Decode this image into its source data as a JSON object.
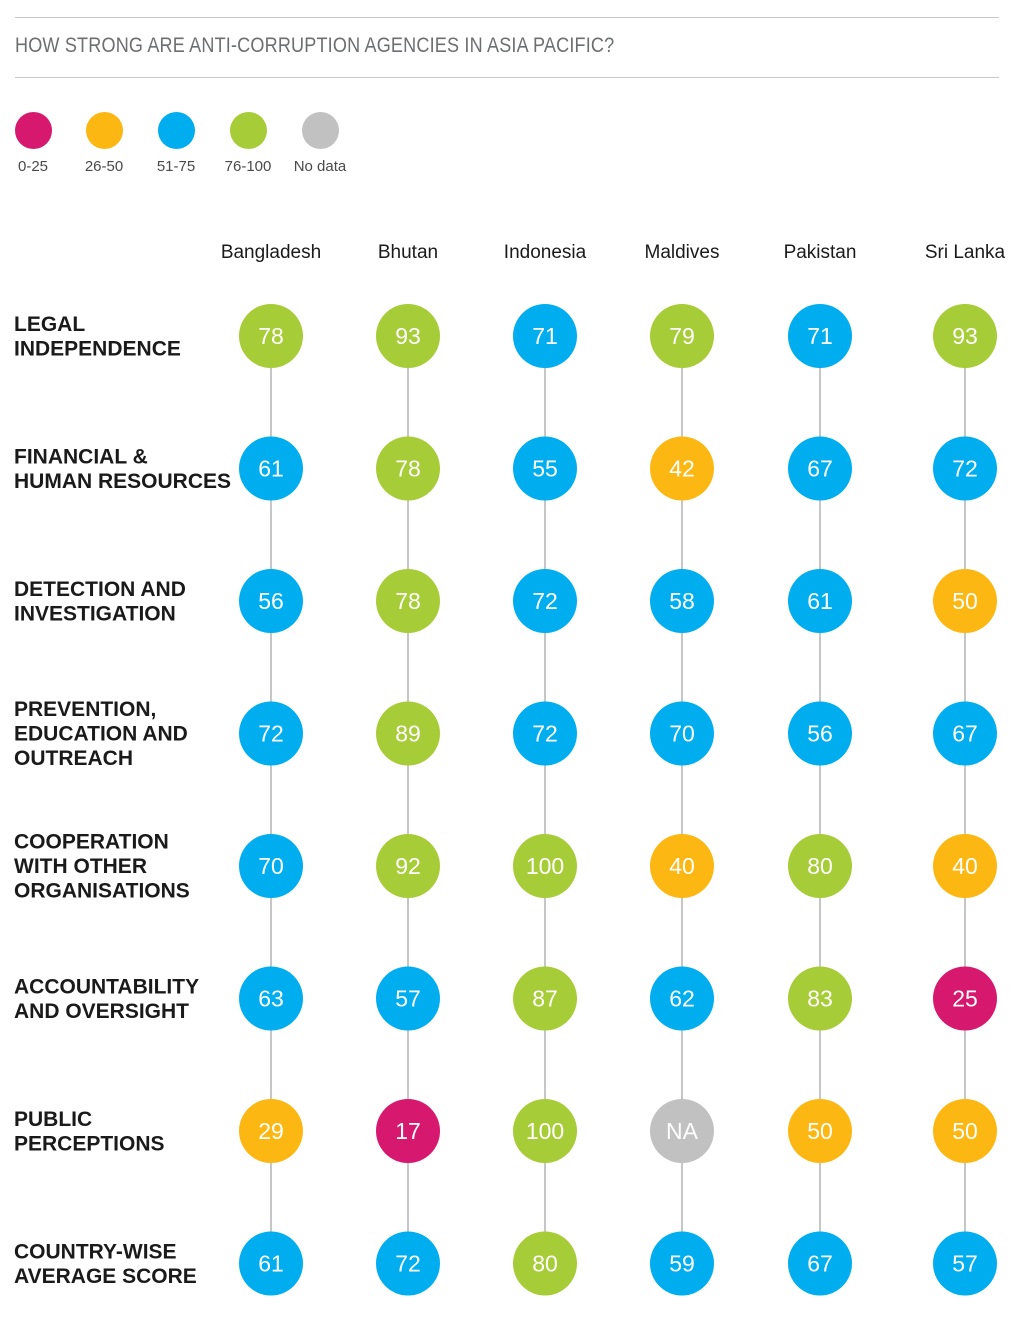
{
  "title": "HOW STRONG ARE ANTI-CORRUPTION AGENCIES IN ASIA PACIFIC?",
  "legend": [
    {
      "label": "0-25",
      "color": "#d7186f"
    },
    {
      "label": "26-50",
      "color": "#fdb713"
    },
    {
      "label": "51-75",
      "color": "#00aeef"
    },
    {
      "label": "76-100",
      "color": "#a6cd37"
    },
    {
      "label": "No data",
      "color": "#c1c1c1"
    }
  ],
  "chart_data": {
    "type": "table",
    "columns": [
      "Bangladesh",
      "Bhutan",
      "Indonesia",
      "Maldives",
      "Pakistan",
      "Sri Lanka"
    ],
    "rows": [
      {
        "label": [
          "LEGAL",
          "INDEPENDENCE"
        ],
        "values": [
          "78",
          "93",
          "71",
          "79",
          "71",
          "93"
        ]
      },
      {
        "label": [
          "FINANCIAL &",
          "HUMAN RESOURCES"
        ],
        "values": [
          "61",
          "78",
          "55",
          "42",
          "67",
          "72"
        ]
      },
      {
        "label": [
          "DETECTION AND",
          "INVESTIGATION"
        ],
        "values": [
          "56",
          "78",
          "72",
          "58",
          "61",
          "50"
        ]
      },
      {
        "label": [
          "PREVENTION,",
          "EDUCATION AND",
          "OUTREACH"
        ],
        "values": [
          "72",
          "89",
          "72",
          "70",
          "56",
          "67"
        ]
      },
      {
        "label": [
          "COOPERATION",
          "WITH OTHER",
          "ORGANISATIONS"
        ],
        "values": [
          "70",
          "92",
          "100",
          "40",
          "80",
          "40"
        ]
      },
      {
        "label": [
          "ACCOUNTABILITY",
          "AND OVERSIGHT"
        ],
        "values": [
          "63",
          "57",
          "87",
          "62",
          "83",
          "25"
        ]
      },
      {
        "label": [
          "PUBLIC",
          "PERCEPTIONS"
        ],
        "values": [
          "29",
          "17",
          "100",
          "NA",
          "50",
          "50"
        ]
      },
      {
        "label": [
          "COUNTRY-WISE",
          "AVERAGE SCORE"
        ],
        "values": [
          "61",
          "72",
          "80",
          "59",
          "67",
          "57"
        ]
      }
    ],
    "connector_color": "#b3b3b3"
  }
}
